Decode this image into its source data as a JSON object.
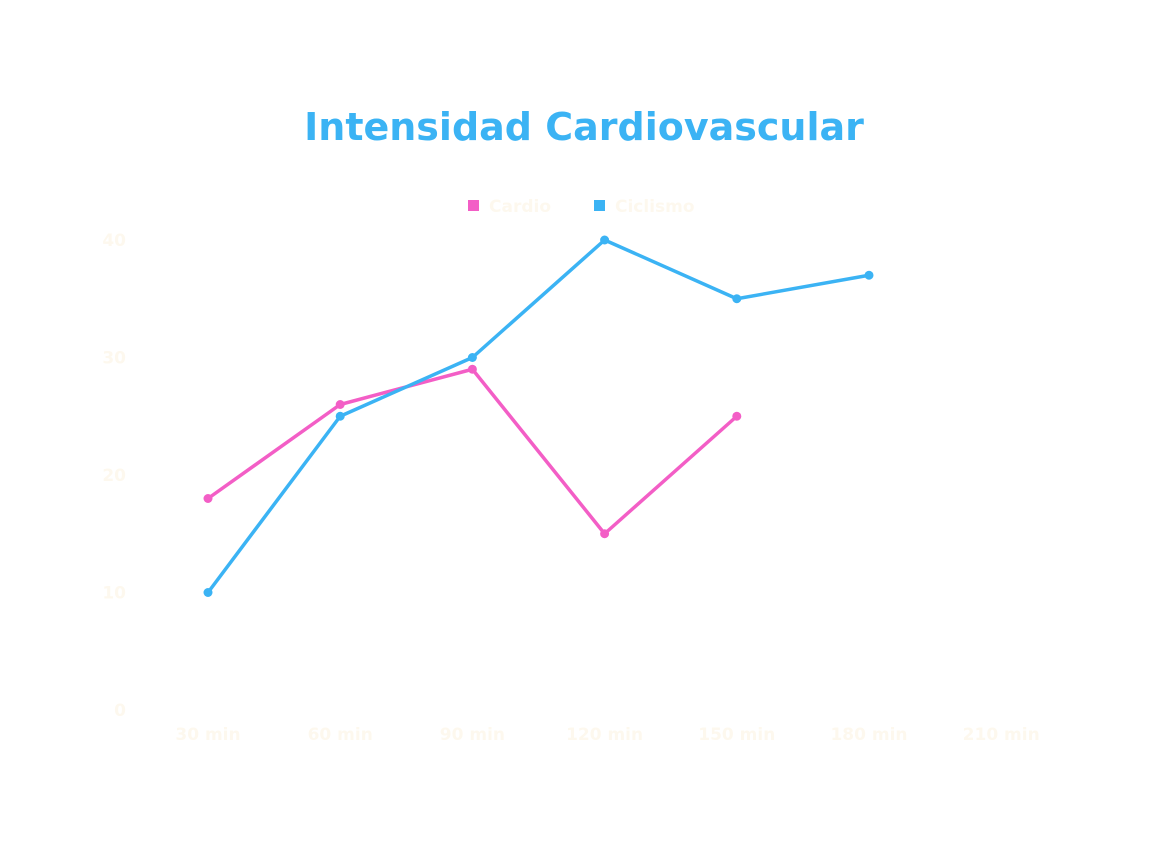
{
  "chart_data": {
    "type": "line",
    "title": "Intensidad Cardiovascular",
    "xlabel": "",
    "ylabel": "",
    "categories": [
      "30 min",
      "60 min",
      "90 min",
      "120 min",
      "150 min",
      "180 min",
      "210 min"
    ],
    "series": [
      {
        "name": "Cardio",
        "values": [
          18,
          26,
          29,
          15,
          25,
          null,
          null
        ],
        "color": "#f35ec6"
      },
      {
        "name": "Ciclismo",
        "values": [
          10,
          25,
          30,
          40,
          35,
          37,
          null
        ],
        "color": "#3bb3f4"
      }
    ],
    "ylim": [
      0,
      40
    ],
    "yticks": [
      "0",
      "10",
      "20",
      "30",
      "40"
    ],
    "grid": false,
    "legend": "top-center",
    "colors": {
      "title": "#3bb3f4",
      "tick_labels": "#fdf8ee",
      "legend_text": "#fdf8ee",
      "background": "#ffffff"
    }
  }
}
